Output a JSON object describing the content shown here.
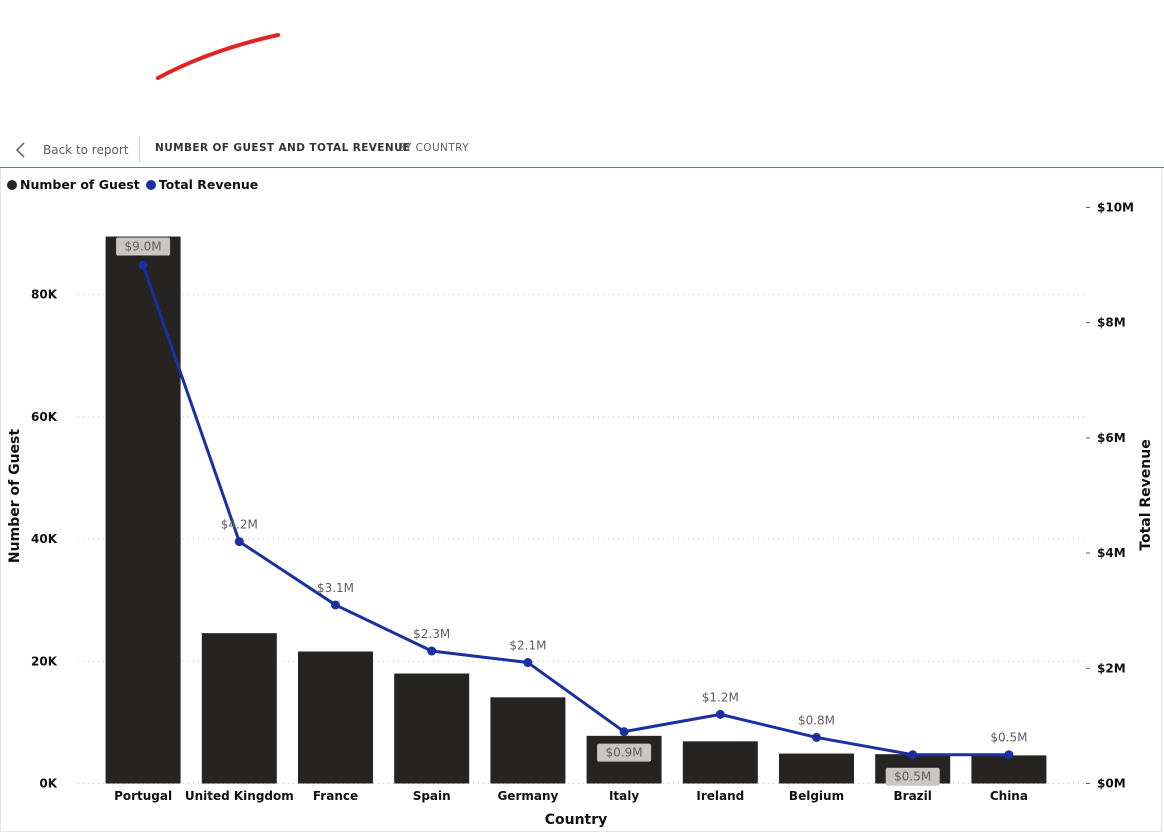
{
  "nav": {
    "back_label": "Back to report"
  },
  "header": {
    "title": "NUMBER OF GUEST AND TOTAL REVENUE",
    "subtitle": "BY COUNTRY"
  },
  "colors": {
    "bar": "#252423",
    "line": "#1a2fa0",
    "header_border": "#3b86c7",
    "swoosh": "#e02424"
  },
  "icons": {
    "back": "chevron-left-icon"
  },
  "chart_data": {
    "type": "bar",
    "combo": "bar-line",
    "categories": [
      "Portugal",
      "United Kingdom",
      "France",
      "Spain",
      "Germany",
      "Italy",
      "Ireland",
      "Belgium",
      "Brazil",
      "China"
    ],
    "series": [
      {
        "name": "Number of Guest",
        "type": "bar",
        "axis": "left",
        "values": [
          89500,
          24600,
          21600,
          18000,
          14100,
          7800,
          6900,
          4900,
          4800,
          4600
        ]
      },
      {
        "name": "Total Revenue",
        "type": "line",
        "axis": "right",
        "values": [
          9.0,
          4.2,
          3.1,
          2.3,
          2.1,
          0.9,
          1.2,
          0.8,
          0.5,
          0.5
        ],
        "labels": [
          "$9.0M",
          "$4.2M",
          "$3.1M",
          "$2.3M",
          "$2.1M",
          "$0.9M",
          "$1.2M",
          "$0.8M",
          "$0.5M",
          "$0.5M"
        ]
      }
    ],
    "xlabel": "Country",
    "ylabel": "Number of Guest",
    "y2label": "Total Revenue",
    "ylim": [
      0,
      90000
    ],
    "y2lim": [
      0,
      10
    ],
    "yticks": [
      {
        "v": 0,
        "t": "0K"
      },
      {
        "v": 20000,
        "t": "20K"
      },
      {
        "v": 40000,
        "t": "40K"
      },
      {
        "v": 60000,
        "t": "60K"
      },
      {
        "v": 80000,
        "t": "80K"
      }
    ],
    "y2ticks": [
      {
        "v": 0,
        "t": "$0M"
      },
      {
        "v": 2,
        "t": "$2M"
      },
      {
        "v": 4,
        "t": "$4M"
      },
      {
        "v": 6,
        "t": "$6M"
      },
      {
        "v": 8,
        "t": "$8M"
      },
      {
        "v": 10,
        "t": "$10M"
      }
    ],
    "grid": true,
    "legend_position": "top-left"
  }
}
